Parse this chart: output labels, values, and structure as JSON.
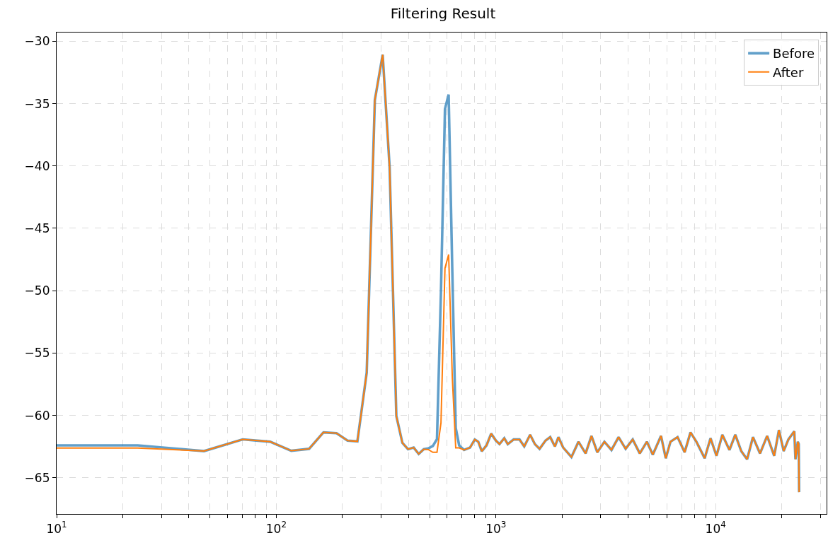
{
  "chart_data": {
    "type": "line",
    "title": "Filtering Result",
    "x": [
      10,
      23.4,
      46.9,
      70.3,
      93.8,
      117,
      141,
      164,
      188,
      211,
      234,
      258,
      281,
      305,
      328,
      352,
      375,
      398,
      422,
      445,
      469,
      492,
      516,
      539,
      562,
      586,
      609,
      633,
      656,
      680,
      716,
      762,
      801,
      831,
      862,
      906,
      951,
      1000,
      1038,
      1091,
      1132,
      1204,
      1280,
      1345,
      1431,
      1504,
      1580,
      1681,
      1766,
      1855,
      1925,
      2023,
      2206,
      2376,
      2559,
      2722,
      2894,
      3117,
      3357,
      3616,
      3894,
      4194,
      4516,
      4864,
      5176,
      5643,
      5929,
      6231,
      6710,
      7227,
      7686,
      8175,
      8913,
      9480,
      10090,
      10730,
      11560,
      12290,
      13080,
      13910,
      14790,
      15930,
      17160,
      18480,
      19420,
      20410,
      21440,
      22810,
      23090,
      23670,
      23900,
      23990
    ],
    "series": [
      {
        "name": "Before",
        "color": "#1f77b4",
        "values": [
          -62.4,
          -62.4,
          -62.86,
          -61.92,
          -62.11,
          -62.83,
          -62.68,
          -61.36,
          -61.42,
          -62.02,
          -62.08,
          -56.57,
          -34.71,
          -31.08,
          -40.08,
          -60.05,
          -62.2,
          -62.71,
          -62.58,
          -63.09,
          -62.71,
          -62.65,
          -62.45,
          -61.9,
          -50.0,
          -35.43,
          -34.27,
          -48.5,
          -61.0,
          -62.4,
          -62.77,
          -62.58,
          -61.93,
          -62.11,
          -62.87,
          -62.4,
          -61.46,
          -62.02,
          -62.3,
          -61.83,
          -62.3,
          -61.93,
          -61.93,
          -62.49,
          -61.55,
          -62.3,
          -62.68,
          -62.02,
          -61.74,
          -62.49,
          -61.74,
          -62.58,
          -63.34,
          -62.11,
          -63.05,
          -61.64,
          -62.96,
          -62.11,
          -62.77,
          -61.74,
          -62.68,
          -61.93,
          -63.05,
          -62.11,
          -63.15,
          -61.64,
          -63.43,
          -62.11,
          -61.74,
          -62.96,
          -61.36,
          -62.11,
          -63.43,
          -61.83,
          -63.24,
          -61.55,
          -62.77,
          -61.55,
          -62.86,
          -63.52,
          -61.74,
          -63.05,
          -61.64,
          -63.24,
          -61.17,
          -62.86,
          -61.93,
          -61.27,
          -63.52,
          -62.11,
          -62.3,
          -66.15
        ]
      },
      {
        "name": "After",
        "color": "#ff7f0e",
        "values": [
          -62.62,
          -62.62,
          -62.86,
          -61.92,
          -62.11,
          -62.83,
          -62.68,
          -61.36,
          -61.42,
          -62.02,
          -62.08,
          -56.57,
          -34.71,
          -31.08,
          -40.08,
          -60.05,
          -62.2,
          -62.71,
          -62.58,
          -63.09,
          -62.71,
          -62.74,
          -62.96,
          -62.96,
          -60.6,
          -48.2,
          -47.1,
          -57.0,
          -62.6,
          -62.6,
          -62.77,
          -62.58,
          -61.93,
          -62.11,
          -62.87,
          -62.4,
          -61.46,
          -62.02,
          -62.3,
          -61.83,
          -62.3,
          -61.93,
          -61.93,
          -62.49,
          -61.55,
          -62.3,
          -62.68,
          -62.02,
          -61.74,
          -62.49,
          -61.74,
          -62.58,
          -63.34,
          -62.11,
          -63.05,
          -61.64,
          -62.96,
          -62.11,
          -62.77,
          -61.74,
          -62.68,
          -61.93,
          -63.05,
          -62.11,
          -63.15,
          -61.64,
          -63.43,
          -62.11,
          -61.74,
          -62.96,
          -61.36,
          -62.11,
          -63.43,
          -61.83,
          -63.24,
          -61.55,
          -62.77,
          -61.55,
          -62.86,
          -63.52,
          -61.74,
          -63.05,
          -61.64,
          -63.24,
          -61.17,
          -62.86,
          -61.93,
          -61.27,
          -63.52,
          -62.11,
          -62.3,
          -66.15
        ]
      }
    ],
    "log": "x",
    "xlim": [
      10,
      32000
    ],
    "xticks": [
      {
        "value": 10,
        "label": "10$^{1}$"
      },
      {
        "value": 20,
        "label": null
      },
      {
        "value": 30,
        "label": null
      },
      {
        "value": 40,
        "label": null
      },
      {
        "value": 50,
        "label": null
      },
      {
        "value": 60,
        "label": null
      },
      {
        "value": 70,
        "label": null
      },
      {
        "value": 80,
        "label": null
      },
      {
        "value": 90,
        "label": null
      },
      {
        "value": 100,
        "label": "10$^{2}$"
      },
      {
        "value": 200,
        "label": null
      },
      {
        "value": 300,
        "label": null
      },
      {
        "value": 400,
        "label": null
      },
      {
        "value": 500,
        "label": null
      },
      {
        "value": 600,
        "label": null
      },
      {
        "value": 700,
        "label": null
      },
      {
        "value": 800,
        "label": null
      },
      {
        "value": 900,
        "label": null
      },
      {
        "value": 1000,
        "label": "10$^{3}$"
      },
      {
        "value": 2000,
        "label": null
      },
      {
        "value": 3000,
        "label": null
      },
      {
        "value": 4000,
        "label": null
      },
      {
        "value": 5000,
        "label": null
      },
      {
        "value": 6000,
        "label": null
      },
      {
        "value": 7000,
        "label": null
      },
      {
        "value": 8000,
        "label": null
      },
      {
        "value": 9000,
        "label": null
      },
      {
        "value": 10000,
        "label": "10$^{4}$"
      },
      {
        "value": 20000,
        "label": null
      },
      {
        "value": 30000,
        "label": null
      }
    ],
    "ylim": [
      -67.9,
      -29.3
    ],
    "yticks": [
      {
        "value": -65,
        "label": "−65"
      },
      {
        "value": -60,
        "label": "−60"
      },
      {
        "value": -55,
        "label": "−55"
      },
      {
        "value": -50,
        "label": "−50"
      },
      {
        "value": -45,
        "label": "−45"
      },
      {
        "value": -40,
        "label": "−40"
      },
      {
        "value": -35,
        "label": "−35"
      },
      {
        "value": -30,
        "label": "−30"
      }
    ],
    "grid": true,
    "legend": "top right",
    "line_style": "solid",
    "marker": "none"
  }
}
